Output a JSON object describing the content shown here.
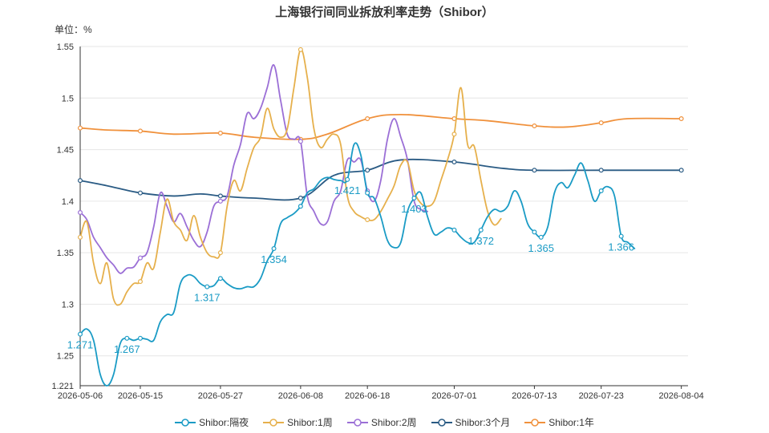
{
  "chart_data": {
    "type": "line",
    "title": "上海银行间同业拆放利率走势（Shibor）",
    "ylabel": "单位：%",
    "xlabel": "",
    "ylim": [
      1.221,
      1.55
    ],
    "yticks": [
      1.221,
      1.25,
      1.3,
      1.35,
      1.4,
      1.45,
      1.5,
      1.55
    ],
    "ytick_labels": [
      "1.221",
      "1.25",
      "1.3",
      "1.35",
      "1.4",
      "1.45",
      "1.5",
      "1.55"
    ],
    "xlim": [
      "2026-05-06",
      "2026-08-05"
    ],
    "xtick_labels": [
      "2026-05-06",
      "2026-05-15",
      "2026-05-27",
      "2026-06-08",
      "2026-06-18",
      "2026-07-01",
      "2026-07-13",
      "2026-07-23",
      "2026-08-04"
    ],
    "grid": true,
    "legend_position": "bottom",
    "series": [
      {
        "name": "Shibor:隔夜",
        "color": "#1a9bc5",
        "points": [
          [
            "2026-05-06",
            1.271
          ],
          [
            "2026-05-07",
            1.276
          ],
          [
            "2026-05-08",
            1.265
          ],
          [
            "2026-05-09",
            1.232
          ],
          [
            "2026-05-10",
            1.221
          ],
          [
            "2026-05-11",
            1.232
          ],
          [
            "2026-05-12",
            1.262
          ],
          [
            "2026-05-13",
            1.267
          ],
          [
            "2026-05-14",
            1.265
          ],
          [
            "2026-05-15",
            1.267
          ],
          [
            "2026-05-16",
            1.266
          ],
          [
            "2026-05-17",
            1.265
          ],
          [
            "2026-05-18",
            1.283
          ],
          [
            "2026-05-19",
            1.29
          ],
          [
            "2026-05-20",
            1.292
          ],
          [
            "2026-05-21",
            1.32
          ],
          [
            "2026-05-22",
            1.328
          ],
          [
            "2026-05-23",
            1.327
          ],
          [
            "2026-05-24",
            1.32
          ],
          [
            "2026-05-25",
            1.317
          ],
          [
            "2026-05-26",
            1.318
          ],
          [
            "2026-05-27",
            1.325
          ],
          [
            "2026-05-28",
            1.32
          ],
          [
            "2026-05-29",
            1.316
          ],
          [
            "2026-05-30",
            1.315
          ],
          [
            "2026-05-31",
            1.317
          ],
          [
            "2026-06-01",
            1.317
          ],
          [
            "2026-06-02",
            1.325
          ],
          [
            "2026-06-03",
            1.342
          ],
          [
            "2026-06-04",
            1.354
          ],
          [
            "2026-06-05",
            1.378
          ],
          [
            "2026-06-06",
            1.384
          ],
          [
            "2026-06-07",
            1.388
          ],
          [
            "2026-06-08",
            1.395
          ],
          [
            "2026-06-09",
            1.408
          ],
          [
            "2026-06-10",
            1.412
          ],
          [
            "2026-06-11",
            1.42
          ],
          [
            "2026-06-12",
            1.423
          ],
          [
            "2026-06-13",
            1.421
          ],
          [
            "2026-06-14",
            1.42
          ],
          [
            "2026-06-15",
            1.421
          ],
          [
            "2026-06-16",
            1.455
          ],
          [
            "2026-06-17",
            1.445
          ],
          [
            "2026-06-18",
            1.408
          ],
          [
            "2026-06-19",
            1.403
          ],
          [
            "2026-06-20",
            1.385
          ],
          [
            "2026-06-21",
            1.362
          ],
          [
            "2026-06-22",
            1.355
          ],
          [
            "2026-06-23",
            1.36
          ],
          [
            "2026-06-24",
            1.39
          ],
          [
            "2026-06-25",
            1.403
          ],
          [
            "2026-06-26",
            1.408
          ],
          [
            "2026-06-27",
            1.385
          ],
          [
            "2026-06-28",
            1.368
          ],
          [
            "2026-06-29",
            1.37
          ],
          [
            "2026-06-30",
            1.374
          ],
          [
            "2026-07-01",
            1.372
          ],
          [
            "2026-07-02",
            1.365
          ],
          [
            "2026-07-03",
            1.36
          ],
          [
            "2026-07-04",
            1.36
          ],
          [
            "2026-07-05",
            1.372
          ],
          [
            "2026-07-06",
            1.385
          ],
          [
            "2026-07-07",
            1.392
          ],
          [
            "2026-07-08",
            1.39
          ],
          [
            "2026-07-09",
            1.395
          ],
          [
            "2026-07-10",
            1.41
          ],
          [
            "2026-07-11",
            1.4
          ],
          [
            "2026-07-12",
            1.378
          ],
          [
            "2026-07-13",
            1.37
          ],
          [
            "2026-07-14",
            1.365
          ],
          [
            "2026-07-15",
            1.375
          ],
          [
            "2026-07-16",
            1.408
          ],
          [
            "2026-07-17",
            1.418
          ],
          [
            "2026-07-18",
            1.413
          ],
          [
            "2026-07-19",
            1.425
          ],
          [
            "2026-07-20",
            1.437
          ],
          [
            "2026-07-21",
            1.42
          ],
          [
            "2026-07-22",
            1.4
          ],
          [
            "2026-07-23",
            1.41
          ],
          [
            "2026-07-24",
            1.414
          ],
          [
            "2026-07-25",
            1.405
          ],
          [
            "2026-07-26",
            1.366
          ],
          [
            "2026-07-27",
            1.36
          ],
          [
            "2026-07-28",
            1.354
          ]
        ],
        "labels": [
          {
            "date": "2026-05-06",
            "text": "1.271"
          },
          {
            "date": "2026-05-13",
            "text": "1.267"
          },
          {
            "date": "2026-05-25",
            "text": "1.317"
          },
          {
            "date": "2026-06-04",
            "text": "1.354"
          },
          {
            "date": "2026-06-15",
            "text": "1.421"
          },
          {
            "date": "2026-06-25",
            "text": "1.403"
          },
          {
            "date": "2026-07-05",
            "text": "1.372"
          },
          {
            "date": "2026-07-14",
            "text": "1.365"
          },
          {
            "date": "2026-07-26",
            "text": "1.366"
          }
        ]
      },
      {
        "name": "Shibor:1周",
        "color": "#e6b04c",
        "points": [
          [
            "2026-05-06",
            1.365
          ],
          [
            "2026-05-07",
            1.38
          ],
          [
            "2026-05-08",
            1.34
          ],
          [
            "2026-05-09",
            1.32
          ],
          [
            "2026-05-10",
            1.34
          ],
          [
            "2026-05-11",
            1.305
          ],
          [
            "2026-05-12",
            1.3
          ],
          [
            "2026-05-13",
            1.312
          ],
          [
            "2026-05-14",
            1.32
          ],
          [
            "2026-05-15",
            1.322
          ],
          [
            "2026-05-16",
            1.34
          ],
          [
            "2026-05-17",
            1.335
          ],
          [
            "2026-05-18",
            1.37
          ],
          [
            "2026-05-19",
            1.402
          ],
          [
            "2026-05-20",
            1.38
          ],
          [
            "2026-05-21",
            1.372
          ],
          [
            "2026-05-22",
            1.362
          ],
          [
            "2026-05-23",
            1.386
          ],
          [
            "2026-05-24",
            1.365
          ],
          [
            "2026-05-25",
            1.35
          ],
          [
            "2026-05-26",
            1.346
          ],
          [
            "2026-05-27",
            1.35
          ],
          [
            "2026-05-28",
            1.395
          ],
          [
            "2026-05-29",
            1.42
          ],
          [
            "2026-05-30",
            1.41
          ],
          [
            "2026-05-31",
            1.432
          ],
          [
            "2026-06-01",
            1.452
          ],
          [
            "2026-06-02",
            1.462
          ],
          [
            "2026-06-03",
            1.49
          ],
          [
            "2026-06-04",
            1.47
          ],
          [
            "2026-06-05",
            1.462
          ],
          [
            "2026-06-06",
            1.47
          ],
          [
            "2026-06-07",
            1.51
          ],
          [
            "2026-06-08",
            1.547
          ],
          [
            "2026-06-09",
            1.52
          ],
          [
            "2026-06-10",
            1.47
          ],
          [
            "2026-06-11",
            1.452
          ],
          [
            "2026-06-12",
            1.46
          ],
          [
            "2026-06-13",
            1.465
          ],
          [
            "2026-06-14",
            1.455
          ],
          [
            "2026-06-15",
            1.405
          ],
          [
            "2026-06-16",
            1.39
          ],
          [
            "2026-06-17",
            1.385
          ],
          [
            "2026-06-18",
            1.382
          ],
          [
            "2026-06-19",
            1.382
          ],
          [
            "2026-06-20",
            1.39
          ],
          [
            "2026-06-21",
            1.402
          ],
          [
            "2026-06-22",
            1.415
          ],
          [
            "2026-06-23",
            1.435
          ],
          [
            "2026-06-24",
            1.438
          ],
          [
            "2026-06-25",
            1.41
          ],
          [
            "2026-06-26",
            1.398
          ],
          [
            "2026-06-27",
            1.395
          ],
          [
            "2026-06-28",
            1.4
          ],
          [
            "2026-06-29",
            1.42
          ],
          [
            "2026-06-30",
            1.44
          ],
          [
            "2026-07-01",
            1.465
          ],
          [
            "2026-07-02",
            1.51
          ],
          [
            "2026-07-03",
            1.455
          ],
          [
            "2026-07-04",
            1.453
          ],
          [
            "2026-07-05",
            1.42
          ],
          [
            "2026-07-06",
            1.39
          ],
          [
            "2026-07-07",
            1.377
          ],
          [
            "2026-07-08",
            1.383
          ]
        ]
      },
      {
        "name": "Shibor:2周",
        "color": "#9b6fd6",
        "points": [
          [
            "2026-05-06",
            1.389
          ],
          [
            "2026-05-07",
            1.382
          ],
          [
            "2026-05-08",
            1.365
          ],
          [
            "2026-05-09",
            1.355
          ],
          [
            "2026-05-10",
            1.345
          ],
          [
            "2026-05-11",
            1.338
          ],
          [
            "2026-05-12",
            1.33
          ],
          [
            "2026-05-13",
            1.335
          ],
          [
            "2026-05-14",
            1.336
          ],
          [
            "2026-05-15",
            1.345
          ],
          [
            "2026-05-16",
            1.35
          ],
          [
            "2026-05-17",
            1.375
          ],
          [
            "2026-05-18",
            1.408
          ],
          [
            "2026-05-19",
            1.395
          ],
          [
            "2026-05-20",
            1.38
          ],
          [
            "2026-05-21",
            1.388
          ],
          [
            "2026-05-22",
            1.375
          ],
          [
            "2026-05-23",
            1.362
          ],
          [
            "2026-05-24",
            1.356
          ],
          [
            "2026-05-25",
            1.37
          ],
          [
            "2026-05-26",
            1.395
          ],
          [
            "2026-05-27",
            1.4
          ],
          [
            "2026-05-28",
            1.405
          ],
          [
            "2026-05-29",
            1.435
          ],
          [
            "2026-05-30",
            1.455
          ],
          [
            "2026-05-31",
            1.485
          ],
          [
            "2026-06-01",
            1.48
          ],
          [
            "2026-06-02",
            1.49
          ],
          [
            "2026-06-03",
            1.51
          ],
          [
            "2026-06-04",
            1.532
          ],
          [
            "2026-06-05",
            1.498
          ],
          [
            "2026-06-06",
            1.465
          ],
          [
            "2026-06-07",
            1.46
          ],
          [
            "2026-06-08",
            1.458
          ],
          [
            "2026-06-09",
            1.405
          ],
          [
            "2026-06-10",
            1.39
          ],
          [
            "2026-06-11",
            1.378
          ],
          [
            "2026-06-12",
            1.38
          ],
          [
            "2026-06-13",
            1.4
          ],
          [
            "2026-06-14",
            1.41
          ],
          [
            "2026-06-15",
            1.44
          ],
          [
            "2026-06-16",
            1.438
          ],
          [
            "2026-06-17",
            1.44
          ],
          [
            "2026-06-18",
            1.41
          ],
          [
            "2026-06-19",
            1.4
          ],
          [
            "2026-06-20",
            1.42
          ],
          [
            "2026-06-21",
            1.46
          ],
          [
            "2026-06-22",
            1.48
          ],
          [
            "2026-06-23",
            1.462
          ],
          [
            "2026-06-24",
            1.44
          ],
          [
            "2026-06-25",
            1.4
          ],
          [
            "2026-06-26",
            1.392
          ],
          [
            "2026-06-27",
            1.39
          ]
        ]
      },
      {
        "name": "Shibor:3个月",
        "color": "#2a5b84",
        "points": [
          [
            "2026-05-06",
            1.42
          ],
          [
            "2026-05-10",
            1.415
          ],
          [
            "2026-05-15",
            1.408
          ],
          [
            "2026-05-20",
            1.405
          ],
          [
            "2026-05-24",
            1.407
          ],
          [
            "2026-05-27",
            1.405
          ],
          [
            "2026-06-01",
            1.403
          ],
          [
            "2026-06-08",
            1.403
          ],
          [
            "2026-06-13",
            1.425
          ],
          [
            "2026-06-18",
            1.43
          ],
          [
            "2026-06-23",
            1.44
          ],
          [
            "2026-07-01",
            1.438
          ],
          [
            "2026-07-08",
            1.432
          ],
          [
            "2026-07-13",
            1.43
          ],
          [
            "2026-07-23",
            1.43
          ],
          [
            "2026-08-04",
            1.43
          ]
        ]
      },
      {
        "name": "Shibor:1年",
        "color": "#f0913c",
        "points": [
          [
            "2026-05-06",
            1.471
          ],
          [
            "2026-05-10",
            1.469
          ],
          [
            "2026-05-15",
            1.468
          ],
          [
            "2026-05-20",
            1.465
          ],
          [
            "2026-05-27",
            1.466
          ],
          [
            "2026-06-01",
            1.462
          ],
          [
            "2026-06-08",
            1.46
          ],
          [
            "2026-06-12",
            1.465
          ],
          [
            "2026-06-18",
            1.48
          ],
          [
            "2026-06-23",
            1.484
          ],
          [
            "2026-07-01",
            1.48
          ],
          [
            "2026-07-06",
            1.478
          ],
          [
            "2026-07-13",
            1.473
          ],
          [
            "2026-07-18",
            1.472
          ],
          [
            "2026-07-23",
            1.476
          ],
          [
            "2026-07-27",
            1.48
          ],
          [
            "2026-08-04",
            1.48
          ]
        ]
      }
    ]
  }
}
